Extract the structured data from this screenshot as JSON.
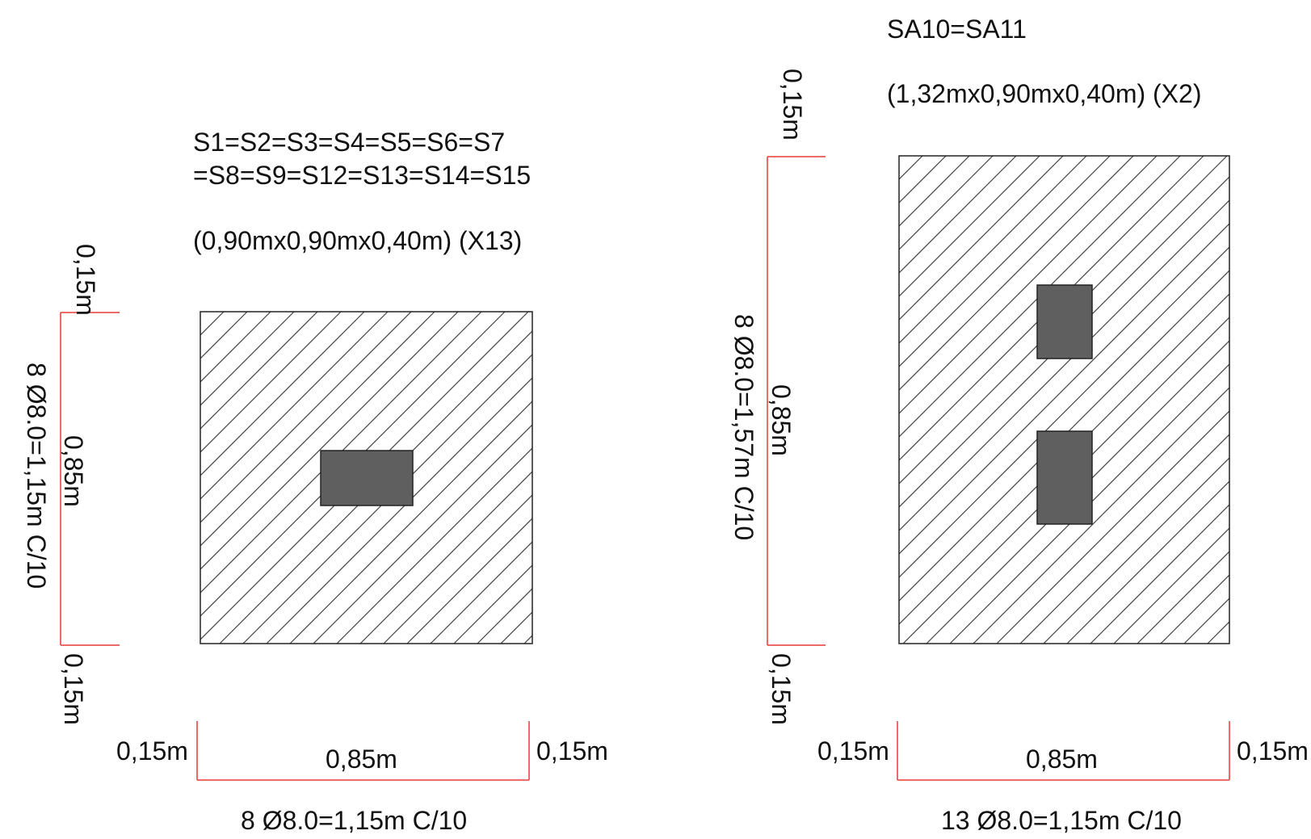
{
  "colors": {
    "background": "#ffffff",
    "outline": "#222222",
    "hatch": "#444444",
    "column": "#5f5f5f",
    "dimension": "#e53935",
    "text": "#111111"
  },
  "footing_left": {
    "title_line1": "S1=S2=S3=S4=S5=S6=S7",
    "title_line2": "=S8=S9=S12=S13=S14=S15",
    "size_label": "(0,90mx0,90mx0,40m) (X13)",
    "dim_top_cover": "0,15m",
    "dim_height": "0,85m",
    "dim_bottom_cover": "0,15m",
    "dim_left_cover": "0,15m",
    "dim_width": "0,85m",
    "dim_right_cover": "0,15m",
    "rebar_vertical": "8 Ø8.0=1,15m C/10",
    "rebar_horizontal": "8 Ø8.0=1,15m C/10"
  },
  "footing_right": {
    "title": "SA10=SA11",
    "size_label": "(1,32mx0,90mx0,40m) (X2)",
    "dim_top_cover": "0,15m",
    "dim_height": "0,85m",
    "dim_bottom_cover": "0,15m",
    "dim_left_cover": "0,15m",
    "dim_width": "0,85m",
    "dim_right_cover": "0,15m",
    "rebar_vertical": "8 Ø8.0=1,57m C/10",
    "rebar_horizontal": "13 Ø8.0=1,15m C/10"
  }
}
